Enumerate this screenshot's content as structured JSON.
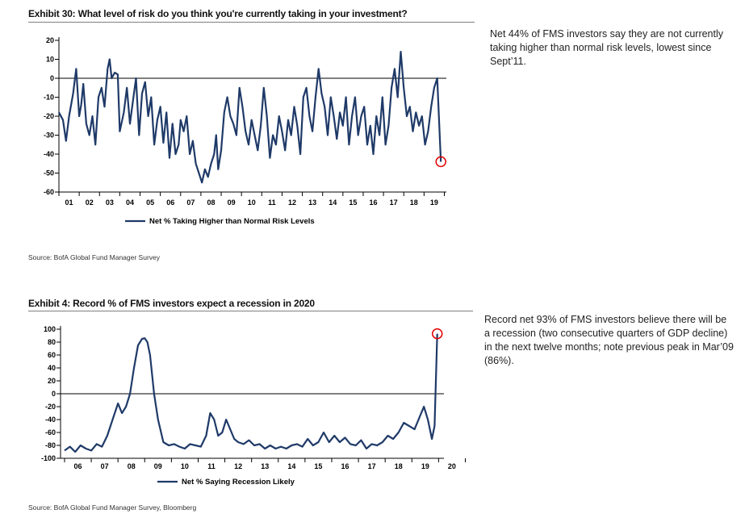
{
  "exhibits": [
    {
      "title": "Exhibit 30: What level of risk do you think you're currently taking in your investment?",
      "note": "Net 44% of FMS investors say they are not currently taking higher than normal risk levels, lowest since Sept’11.",
      "source": "Source: BofA Global Fund Manager Survey"
    },
    {
      "title": "Exhibit 4: Record % of FMS investors expect a recession in 2020",
      "note": "Record net 93% of FMS investors believe there will be a recession (two consecutive quarters of GDP decline) in the next twelve months; note previous peak in Mar’09 (86%).",
      "source": "Source: BofA Global Fund Manager Survey, Bloomberg"
    }
  ],
  "chart_data": [
    {
      "type": "line",
      "ylim": [
        -60,
        20
      ],
      "yticks": [
        20,
        10,
        0,
        -10,
        -20,
        -30,
        -40,
        -50,
        -60
      ],
      "xlim": [
        2001.0,
        2020.1
      ],
      "xtick_labels": [
        "01",
        "02",
        "03",
        "04",
        "05",
        "06",
        "07",
        "08",
        "09",
        "10",
        "11",
        "12",
        "13",
        "14",
        "15",
        "16",
        "17",
        "18",
        "19"
      ],
      "zero_line": 0,
      "highlight_point": {
        "x": 2019.83,
        "y": -44
      },
      "series": [
        {
          "name": "Net % Taking Higher than Normal Risk Levels",
          "color": "#1f3a68",
          "x": [
            2001.0,
            2001.2,
            2001.35,
            2001.5,
            2001.7,
            2001.85,
            2002.0,
            2002.1,
            2002.2,
            2002.35,
            2002.5,
            2002.65,
            2002.8,
            2002.95,
            2003.1,
            2003.25,
            2003.4,
            2003.5,
            2003.6,
            2003.75,
            2003.9,
            2004.0,
            2004.2,
            2004.35,
            2004.5,
            2004.65,
            2004.8,
            2004.95,
            2005.1,
            2005.25,
            2005.4,
            2005.55,
            2005.7,
            2005.85,
            2006.0,
            2006.15,
            2006.3,
            2006.45,
            2006.6,
            2006.75,
            2006.9,
            2007.0,
            2007.15,
            2007.3,
            2007.45,
            2007.6,
            2007.75,
            2007.9,
            2008.05,
            2008.2,
            2008.35,
            2008.5,
            2008.65,
            2008.75,
            2008.85,
            2009.0,
            2009.15,
            2009.3,
            2009.45,
            2009.6,
            2009.75,
            2009.9,
            2010.05,
            2010.2,
            2010.35,
            2010.5,
            2010.65,
            2010.8,
            2010.95,
            2011.1,
            2011.25,
            2011.4,
            2011.55,
            2011.7,
            2011.85,
            2012.0,
            2012.15,
            2012.3,
            2012.45,
            2012.6,
            2012.75,
            2012.9,
            2013.05,
            2013.2,
            2013.35,
            2013.5,
            2013.65,
            2013.8,
            2013.95,
            2014.1,
            2014.25,
            2014.4,
            2014.55,
            2014.7,
            2014.85,
            2015.0,
            2015.15,
            2015.3,
            2015.45,
            2015.6,
            2015.75,
            2015.9,
            2016.05,
            2016.2,
            2016.35,
            2016.5,
            2016.65,
            2016.8,
            2016.95,
            2017.1,
            2017.25,
            2017.4,
            2017.55,
            2017.7,
            2017.85,
            2018.0,
            2018.15,
            2018.3,
            2018.45,
            2018.6,
            2018.75,
            2018.9,
            2019.05,
            2019.2,
            2019.35,
            2019.5,
            2019.65,
            2019.83
          ],
          "values": [
            -18,
            -22,
            -33,
            -20,
            -8,
            5,
            -20,
            -14,
            -3,
            -24,
            -30,
            -20,
            -35,
            -10,
            -5,
            -15,
            5,
            10,
            0,
            3,
            2,
            -28,
            -18,
            -5,
            -24,
            -12,
            0,
            -30,
            -8,
            -2,
            -20,
            -10,
            -35,
            -22,
            -15,
            -34,
            -18,
            -42,
            -24,
            -40,
            -35,
            -22,
            -28,
            -20,
            -40,
            -33,
            -45,
            -50,
            -55,
            -48,
            -52,
            -45,
            -40,
            -30,
            -48,
            -38,
            -18,
            -10,
            -20,
            -24,
            -30,
            -5,
            -15,
            -28,
            -35,
            -22,
            -30,
            -38,
            -25,
            -5,
            -20,
            -42,
            -30,
            -35,
            -20,
            -28,
            -38,
            -22,
            -30,
            -15,
            -25,
            -40,
            -10,
            -5,
            -20,
            -28,
            -10,
            5,
            -8,
            -15,
            -30,
            -10,
            -20,
            -32,
            -18,
            -25,
            -10,
            -35,
            -20,
            -10,
            -30,
            -20,
            -15,
            -35,
            -25,
            -40,
            -20,
            -30,
            -10,
            -35,
            -25,
            -5,
            5,
            -10,
            14,
            -5,
            -20,
            -15,
            -28,
            -18,
            -25,
            -20,
            -35,
            -28,
            -15,
            -5,
            0,
            -44
          ]
        }
      ]
    },
    {
      "type": "line",
      "ylim": [
        -100,
        100
      ],
      "yticks": [
        100,
        80,
        60,
        40,
        20,
        0,
        -20,
        -40,
        -60,
        -80,
        -100
      ],
      "xlim": [
        2005.85,
        2020.2
      ],
      "xtick_labels": [
        "06",
        "07",
        "08",
        "09",
        "10",
        "11",
        "12",
        "13",
        "14",
        "15",
        "16",
        "17",
        "18",
        "19",
        "20"
      ],
      "zero_line": 0,
      "highlight_point": {
        "x": 2019.95,
        "y": 93
      },
      "series": [
        {
          "name": "Net % Saying Recession Likely",
          "color": "#1f3a68",
          "x": [
            2006.0,
            2006.2,
            2006.4,
            2006.6,
            2006.8,
            2007.0,
            2007.2,
            2007.4,
            2007.6,
            2007.8,
            2008.0,
            2008.15,
            2008.3,
            2008.45,
            2008.6,
            2008.75,
            2008.9,
            2009.0,
            2009.1,
            2009.2,
            2009.35,
            2009.5,
            2009.7,
            2009.9,
            2010.1,
            2010.3,
            2010.5,
            2010.7,
            2010.9,
            2011.1,
            2011.3,
            2011.45,
            2011.6,
            2011.75,
            2011.9,
            2012.05,
            2012.2,
            2012.35,
            2012.5,
            2012.7,
            2012.9,
            2013.1,
            2013.3,
            2013.5,
            2013.7,
            2013.9,
            2014.1,
            2014.3,
            2014.5,
            2014.7,
            2014.9,
            2015.1,
            2015.3,
            2015.5,
            2015.7,
            2015.9,
            2016.1,
            2016.3,
            2016.5,
            2016.7,
            2016.9,
            2017.1,
            2017.3,
            2017.5,
            2017.7,
            2017.9,
            2018.1,
            2018.3,
            2018.5,
            2018.7,
            2018.9,
            2019.1,
            2019.3,
            2019.45,
            2019.6,
            2019.75,
            2019.85,
            2019.95
          ],
          "values": [
            -88,
            -82,
            -90,
            -80,
            -85,
            -88,
            -78,
            -82,
            -65,
            -40,
            -15,
            -30,
            -20,
            0,
            40,
            75,
            85,
            86,
            80,
            60,
            0,
            -40,
            -75,
            -80,
            -78,
            -82,
            -85,
            -78,
            -80,
            -82,
            -65,
            -30,
            -40,
            -65,
            -60,
            -40,
            -55,
            -70,
            -75,
            -78,
            -72,
            -80,
            -78,
            -85,
            -80,
            -85,
            -82,
            -85,
            -80,
            -78,
            -82,
            -70,
            -80,
            -75,
            -60,
            -75,
            -65,
            -75,
            -68,
            -78,
            -80,
            -72,
            -85,
            -78,
            -80,
            -75,
            -65,
            -70,
            -60,
            -45,
            -50,
            -55,
            -35,
            -20,
            -40,
            -70,
            -50,
            93
          ]
        }
      ]
    }
  ]
}
